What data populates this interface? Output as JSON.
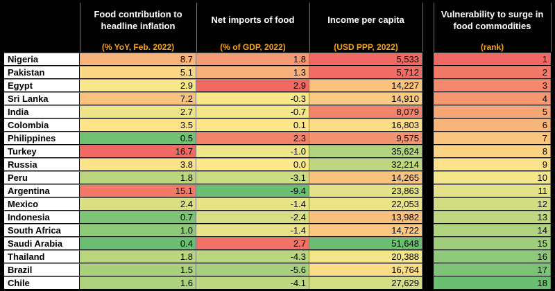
{
  "headers": [
    {
      "title": "Food contribution to headline inflation",
      "unit": "(% YoY, Feb. 2022)"
    },
    {
      "title": "Net imports of food",
      "unit": "(% of GDP, 2022)"
    },
    {
      "title": "Income per capita",
      "unit": "(USD PPP, 2022)"
    },
    {
      "title": "Vulnerability to surge in food commodities",
      "unit": "(rank)"
    }
  ],
  "rows": [
    {
      "country": "Nigeria",
      "food": "8.7",
      "imports": "1.8",
      "income": "5,533",
      "rank": "1"
    },
    {
      "country": "Pakistan",
      "food": "5.1",
      "imports": "1.3",
      "income": "5,712",
      "rank": "2"
    },
    {
      "country": "Egypt",
      "food": "2.9",
      "imports": "2.9",
      "income": "14,227",
      "rank": "3"
    },
    {
      "country": "Sri Lanka",
      "food": "7.2",
      "imports": "-0.3",
      "income": "14,910",
      "rank": "4"
    },
    {
      "country": "India",
      "food": "2.7",
      "imports": "-0.7",
      "income": "8,079",
      "rank": "5"
    },
    {
      "country": "Colombia",
      "food": "3.5",
      "imports": "0.1",
      "income": "16,803",
      "rank": "6"
    },
    {
      "country": "Philippines",
      "food": "0.5",
      "imports": "2.3",
      "income": "9,575",
      "rank": "7"
    },
    {
      "country": "Turkey",
      "food": "16.7",
      "imports": "-1.0",
      "income": "35,624",
      "rank": "8"
    },
    {
      "country": "Russia",
      "food": "3.8",
      "imports": "0.0",
      "income": "32,214",
      "rank": "9"
    },
    {
      "country": "Peru",
      "food": "1.8",
      "imports": "-3.1",
      "income": "14,265",
      "rank": "10"
    },
    {
      "country": "Argentina",
      "food": "15.1",
      "imports": "-9.4",
      "income": "23,863",
      "rank": "11"
    },
    {
      "country": "Mexico",
      "food": "2.4",
      "imports": "-1.4",
      "income": "22,053",
      "rank": "12"
    },
    {
      "country": "Indonesia",
      "food": "0.7",
      "imports": "-2.4",
      "income": "13,982",
      "rank": "13"
    },
    {
      "country": "South Africa",
      "food": "1.0",
      "imports": "-1.4",
      "income": "14,722",
      "rank": "14"
    },
    {
      "country": "Saudi Arabia",
      "food": "0.4",
      "imports": "2.7",
      "income": "51,648",
      "rank": "15"
    },
    {
      "country": "Thailand",
      "food": "1.8",
      "imports": "-4.3",
      "income": "20,388",
      "rank": "16"
    },
    {
      "country": "Brazil",
      "food": "1.5",
      "imports": "-5.6",
      "income": "16,764",
      "rank": "17"
    },
    {
      "country": "Chile",
      "food": "1.6",
      "imports": "-4.1",
      "income": "27,629",
      "rank": "18"
    }
  ],
  "colors": {
    "background": "#000000",
    "header_text": "#ffffff",
    "unit_text": "#f6a51a",
    "scale_red": "#f06a63",
    "scale_yellow": "#fde98a",
    "scale_green": "#6bbf72"
  }
}
